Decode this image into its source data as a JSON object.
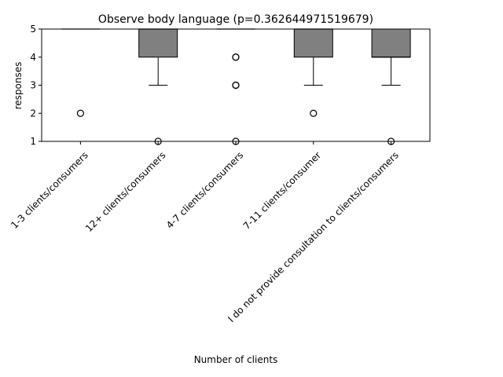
{
  "chart_data": {
    "type": "box",
    "title": "Observe body language (p=0.362644971519679)",
    "xlabel": "Number of clients",
    "ylabel": "responses",
    "ylim": [
      1,
      5
    ],
    "yticks": [
      1,
      2,
      3,
      4,
      5
    ],
    "grid": false,
    "box_color": "#808080",
    "categories": [
      "1-3 clients/consumers",
      "12+ clients/consumers",
      "4-7 clients/consumers",
      "7-11 clients/consumer",
      "I do not provide consultation to clients/consumers"
    ],
    "boxes": [
      {
        "q1": 5,
        "median": 5,
        "q3": 5,
        "whisker_low": 5,
        "whisker_high": 5,
        "outliers": [
          2
        ]
      },
      {
        "q1": 4,
        "median": 5,
        "q3": 5,
        "whisker_low": 3,
        "whisker_high": 5,
        "outliers": [
          1
        ]
      },
      {
        "q1": 5,
        "median": 5,
        "q3": 5,
        "whisker_low": 5,
        "whisker_high": 5,
        "outliers": [
          4,
          4,
          3,
          3,
          1
        ]
      },
      {
        "q1": 4,
        "median": 5,
        "q3": 5,
        "whisker_low": 3,
        "whisker_high": 5,
        "outliers": [
          2
        ]
      },
      {
        "q1": 4,
        "median": 4,
        "q3": 5,
        "whisker_low": 3,
        "whisker_high": 5,
        "outliers": [
          1
        ]
      }
    ]
  }
}
